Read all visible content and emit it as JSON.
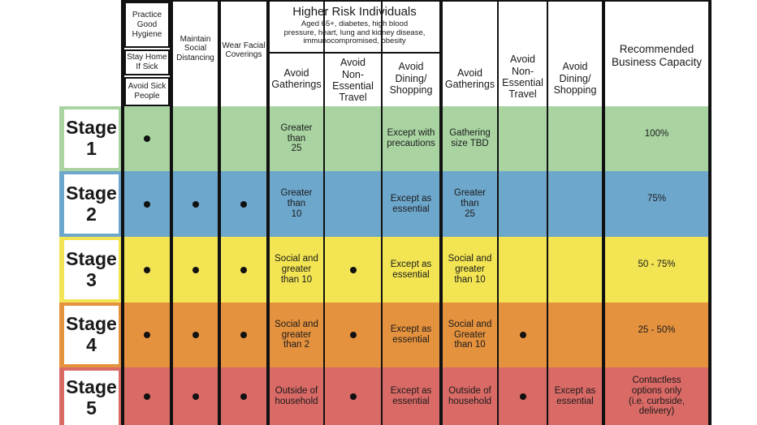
{
  "colors": {
    "stage1": "#a9d4a2",
    "stage2": "#6ea7cc",
    "stage3": "#f2e452",
    "stage4": "#e5923e",
    "stage5": "#d96a66"
  },
  "header": {
    "practice_hygiene": "Practice\nGood\nHygiene",
    "stay_home": "Stay Home\nIf Sick",
    "avoid_sick": "Avoid Sick\nPeople",
    "social_distancing": "Maintain\nSocial\nDistancing",
    "facial_coverings": "Wear Facial\nCoverings",
    "higher_risk_title": "Higher Risk Individuals",
    "higher_risk_sub": "Aged 65+, diabetes, high blood\npressure, heart, lung and kidney disease,\nimmunocompromised, obesity",
    "hr_gatherings": "Avoid\nGatherings",
    "hr_travel": "Avoid\nNon-\nEssential\nTravel",
    "hr_dining": "Avoid\nDining/\nShopping",
    "gen_gatherings": "Avoid\nGatherings",
    "gen_travel": "Avoid\nNon-\nEssential\nTravel",
    "gen_dining": "Avoid\nDining/\nShopping",
    "capacity": "Recommended\nBusiness Capacity"
  },
  "stages": [
    {
      "label": "Stage\n1",
      "hygiene": true,
      "distancing": false,
      "coverings": false,
      "hr_gatherings": "Greater\nthan\n25",
      "hr_travel": false,
      "hr_dining": "Except with\nprecautions",
      "gen_gatherings": "Gathering\nsize TBD",
      "gen_travel": false,
      "gen_dining": "",
      "capacity": "100%"
    },
    {
      "label": "Stage\n2",
      "hygiene": true,
      "distancing": true,
      "coverings": true,
      "hr_gatherings": "Greater\nthan\n10",
      "hr_travel": false,
      "hr_dining": "Except as\nessential",
      "gen_gatherings": "Greater\nthan\n25",
      "gen_travel": false,
      "gen_dining": "",
      "capacity": "75%"
    },
    {
      "label": "Stage\n3",
      "hygiene": true,
      "distancing": true,
      "coverings": true,
      "hr_gatherings": "Social and\ngreater\nthan 10",
      "hr_travel": true,
      "hr_dining": "Except as\nessential",
      "gen_gatherings": "Social and\ngreater\nthan 10",
      "gen_travel": false,
      "gen_dining": "",
      "capacity": "50 - 75%"
    },
    {
      "label": "Stage\n4",
      "hygiene": true,
      "distancing": true,
      "coverings": true,
      "hr_gatherings": "Social and\ngreater\nthan 2",
      "hr_travel": true,
      "hr_dining": "Except as\nessential",
      "gen_gatherings": "Social and\nGreater\nthan 10",
      "gen_travel": true,
      "gen_dining": "",
      "capacity": "25 - 50%"
    },
    {
      "label": "Stage\n5",
      "hygiene": true,
      "distancing": true,
      "coverings": true,
      "hr_gatherings": "Outside of\nhousehold",
      "hr_travel": true,
      "hr_dining": "Except as\nessential",
      "gen_gatherings": "Outside of\nhousehold",
      "gen_travel": true,
      "gen_dining": "Except as\nessential",
      "capacity": "Contactless\noptions only\n(i.e. curbside,\ndelivery)"
    }
  ]
}
